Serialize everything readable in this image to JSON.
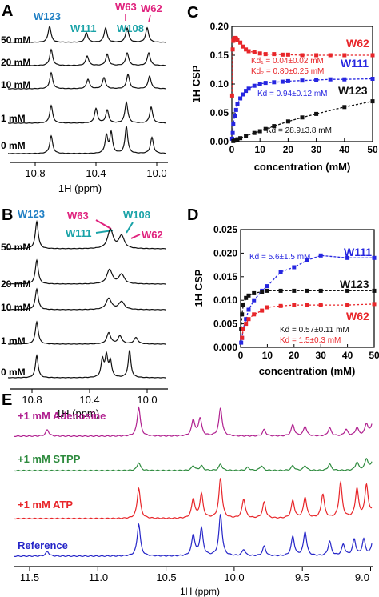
{
  "panels": {
    "A": {
      "letter": "A",
      "peak_labels": [
        {
          "text": "W123",
          "color": "#1f7fc4"
        },
        {
          "text": "W111",
          "color": "#1aa3a8"
        },
        {
          "text": "W63",
          "color": "#e0237e"
        },
        {
          "text": "W108",
          "color": "#1aa3a8"
        },
        {
          "text": "W62",
          "color": "#e0237e"
        }
      ],
      "trace_labels": [
        "50 mM",
        "20 mM",
        "10 mM",
        "1 mM",
        "0 mM"
      ],
      "ticks": [
        "10.8",
        "10.4",
        "10.0"
      ],
      "xlabel": "1H (ppm)"
    },
    "B": {
      "letter": "B",
      "peak_labels": [
        {
          "text": "W123",
          "color": "#1f7fc4"
        },
        {
          "text": "W63",
          "color": "#e0237e"
        },
        {
          "text": "W108",
          "color": "#1aa3a8"
        },
        {
          "text": "W111",
          "color": "#1aa3a8"
        },
        {
          "text": "W62",
          "color": "#e0237e"
        }
      ],
      "trace_labels": [
        "50 mM",
        "20 mM",
        "10 mM",
        "1 mM",
        "0 mM"
      ],
      "ticks": [
        "10.8",
        "10.4",
        "10.0"
      ],
      "xlabel": "1H (ppm)"
    },
    "E": {
      "letter": "E",
      "trace_labels": [
        {
          "text": "+1 mM  Adenosine",
          "color": "#b0208f"
        },
        {
          "text": "+1 mM  STPP",
          "color": "#2e8b3e"
        },
        {
          "text": "+1 mM  ATP",
          "color": "#e8262a"
        },
        {
          "text": "Reference",
          "color": "#2626c8"
        }
      ],
      "ticks": [
        "11.5",
        "11.0",
        "10.5",
        "10.0",
        "9.5",
        "9.0"
      ],
      "xlabel": "1H (ppm)"
    }
  },
  "chart_data": [
    {
      "panel": "C",
      "type": "scatter",
      "ylabel": "1H CSP",
      "xlabel": "concentration (mM)",
      "xlim": [
        0,
        50
      ],
      "ylim": [
        0,
        0.2
      ],
      "x_ticks": [
        "0",
        "10",
        "20",
        "30",
        "40",
        "50"
      ],
      "y_ticks": [
        "0.00",
        "0.05",
        "0.10",
        "0.15",
        "0.20"
      ],
      "series": [
        {
          "name": "W62",
          "color": "#e8262a",
          "x": [
            0.1,
            0.3,
            0.5,
            0.7,
            1,
            1.5,
            2,
            3,
            4,
            5,
            6,
            8,
            10,
            12,
            15,
            18,
            20,
            25,
            30,
            35,
            40,
            50
          ],
          "y": [
            0.08,
            0.16,
            0.175,
            0.178,
            0.18,
            0.179,
            0.177,
            0.172,
            0.165,
            0.16,
            0.157,
            0.155,
            0.153,
            0.152,
            0.152,
            0.151,
            0.151,
            0.15,
            0.15,
            0.15,
            0.15,
            0.15
          ]
        },
        {
          "name": "W111",
          "color": "#2626e0",
          "x": [
            0.1,
            0.3,
            0.5,
            1,
            1.5,
            2,
            3,
            4,
            5,
            6,
            8,
            10,
            12,
            15,
            18,
            20,
            25,
            30,
            35,
            40,
            50
          ],
          "y": [
            0.005,
            0.015,
            0.03,
            0.045,
            0.055,
            0.065,
            0.075,
            0.082,
            0.088,
            0.092,
            0.097,
            0.1,
            0.102,
            0.103,
            0.104,
            0.105,
            0.106,
            0.107,
            0.108,
            0.108,
            0.109
          ]
        },
        {
          "name": "W123",
          "color": "#111111",
          "x": [
            0.5,
            1,
            2,
            3,
            5,
            8,
            10,
            12,
            15,
            20,
            25,
            30,
            40,
            50
          ],
          "y": [
            0.001,
            0.002,
            0.004,
            0.006,
            0.01,
            0.015,
            0.018,
            0.022,
            0.027,
            0.035,
            0.042,
            0.048,
            0.06,
            0.07
          ]
        }
      ],
      "annotations": [
        {
          "text": "Kd₁ = 0.04±0.02 mM",
          "color": "#e8262a"
        },
        {
          "text": "Kd₂ = 0.80±0.25 mM",
          "color": "#e8262a"
        },
        {
          "text": "Kd = 0.94±0.12 mM",
          "color": "#2626e0"
        },
        {
          "text": "Kd = 28.9±3.8 mM",
          "color": "#111111"
        }
      ]
    },
    {
      "panel": "D",
      "type": "scatter",
      "ylabel": "1H CSP",
      "xlabel": "concentration (mM)",
      "xlim": [
        0,
        50
      ],
      "ylim": [
        0,
        0.025
      ],
      "x_ticks": [
        "0",
        "10",
        "20",
        "30",
        "40",
        "50"
      ],
      "y_ticks": [
        "0.000",
        "0.005",
        "0.010",
        "0.015",
        "0.020",
        "0.025"
      ],
      "series": [
        {
          "name": "W111",
          "color": "#2626e0",
          "x": [
            0.2,
            0.5,
            1,
            2,
            3,
            5,
            8,
            10,
            15,
            20,
            25,
            30,
            40,
            50
          ],
          "y": [
            0.001,
            0.002,
            0.004,
            0.006,
            0.008,
            0.01,
            0.012,
            0.013,
            0.016,
            0.017,
            0.0185,
            0.0195,
            0.019,
            0.019
          ]
        },
        {
          "name": "W123",
          "color": "#111111",
          "x": [
            0.2,
            0.5,
            1,
            2,
            3,
            5,
            8,
            10,
            15,
            20,
            25,
            30,
            40,
            50
          ],
          "y": [
            0.004,
            0.007,
            0.009,
            0.0105,
            0.011,
            0.0115,
            0.0118,
            0.012,
            0.012,
            0.012,
            0.012,
            0.012,
            0.012,
            0.012
          ]
        },
        {
          "name": "W62",
          "color": "#e8262a",
          "x": [
            0.5,
            1,
            2,
            3,
            5,
            8,
            10,
            15,
            20,
            25,
            30,
            40,
            50
          ],
          "y": [
            0.002,
            0.004,
            0.005,
            0.006,
            0.007,
            0.0078,
            0.0085,
            0.0088,
            0.009,
            0.009,
            0.009,
            0.009,
            0.0092
          ]
        }
      ],
      "annotations": [
        {
          "text": "Kd = 5.6±1.5 mM",
          "color": "#2626e0"
        },
        {
          "text": "Kd = 0.57±0.11 mM",
          "color": "#111111"
        },
        {
          "text": "Kd = 1.5±0.3 mM",
          "color": "#e8262a"
        }
      ]
    }
  ]
}
